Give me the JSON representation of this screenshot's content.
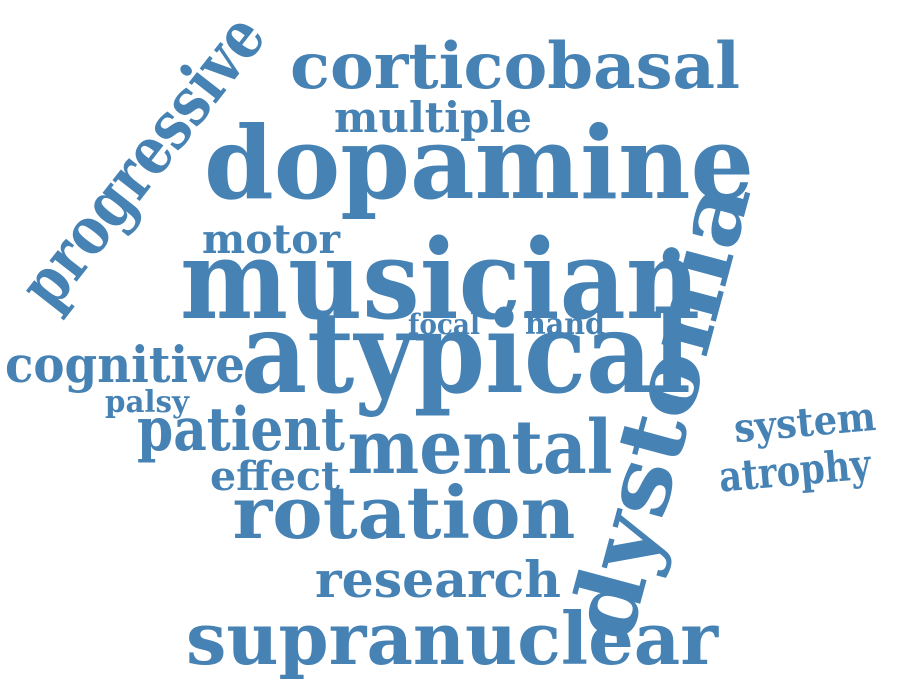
{
  "word_cloud": {
    "color": "#4682b4",
    "words": {
      "corticobasal": "corticobasal",
      "progressive": "progressive",
      "multiple": "multiple",
      "dopamine": "dopamine",
      "motor": "motor",
      "musician": "musician",
      "dystonia": "dystonia",
      "focal": "focal",
      "hand": "hand",
      "cognitive": "cognitive",
      "atypical": "atypical",
      "palsy": "palsy",
      "system": "system",
      "patient": "patient",
      "mental": "mental",
      "atrophy": "atrophy",
      "effect": "effect",
      "rotation": "rotation",
      "research": "research",
      "supranuclear": "supranuclear"
    }
  }
}
